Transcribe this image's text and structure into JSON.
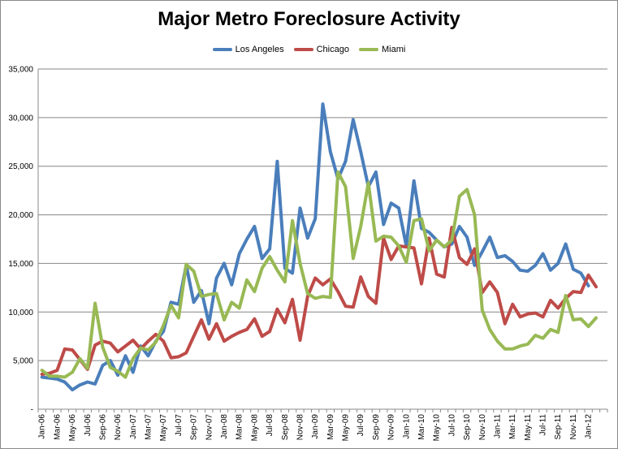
{
  "chart_data": {
    "type": "line",
    "title": "Major Metro Foreclosure Activity",
    "legend_position": "top",
    "grid": true,
    "ylim": [
      0,
      35000
    ],
    "ytick_values": [
      0,
      5000,
      10000,
      15000,
      20000,
      25000,
      30000,
      35000
    ],
    "ytick_labels": [
      "-",
      "5,000",
      "10,000",
      "15,000",
      "20,000",
      "25,000",
      "30,000",
      "35,000"
    ],
    "x": [
      "Jan-06",
      "Feb-06",
      "Mar-06",
      "Apr-06",
      "May-06",
      "Jun-06",
      "Jul-06",
      "Aug-06",
      "Sep-06",
      "Oct-06",
      "Nov-06",
      "Dec-06",
      "Jan-07",
      "Feb-07",
      "Mar-07",
      "Apr-07",
      "May-07",
      "Jun-07",
      "Jul-07",
      "Aug-07",
      "Sep-07",
      "Oct-07",
      "Nov-07",
      "Dec-07",
      "Jan-08",
      "Feb-08",
      "Mar-08",
      "Apr-08",
      "May-08",
      "Jun-08",
      "Jul-08",
      "Aug-08",
      "Sep-08",
      "Oct-08",
      "Nov-08",
      "Dec-08",
      "Jan-09",
      "Feb-09",
      "Mar-09",
      "Apr-09",
      "May-09",
      "Jun-09",
      "Jul-09",
      "Aug-09",
      "Sep-09",
      "Oct-09",
      "Nov-09",
      "Dec-09",
      "Jan-10",
      "Feb-10",
      "Mar-10",
      "Apr-10",
      "May-10",
      "Jun-10",
      "Jul-10",
      "Aug-10",
      "Sep-10",
      "Oct-10",
      "Nov-10",
      "Dec-10",
      "Jan-11",
      "Feb-11",
      "Mar-11",
      "Apr-11",
      "May-11",
      "Jun-11",
      "Jul-11",
      "Aug-11",
      "Sep-11",
      "Oct-11",
      "Nov-11",
      "Dec-11",
      "Jan-12",
      "Feb-12",
      "Mar-12"
    ],
    "xtick_labels": [
      "Jan-06",
      "Mar-06",
      "May-06",
      "Jul-06",
      "Sep-06",
      "Nov-06",
      "Jan-07",
      "Mar-07",
      "May-07",
      "Jul-07",
      "Sep-07",
      "Nov-07",
      "Jan-08",
      "Mar-08",
      "May-08",
      "Jul-08",
      "Sep-08",
      "Nov-08",
      "Jan-09",
      "Mar-09",
      "May-09",
      "Jul-09",
      "Sep-09",
      "Nov-09",
      "Jan-10",
      "Mar-10",
      "May-10",
      "Jul-10",
      "Sep-10",
      "Nov-10",
      "Jan-11",
      "Mar-11",
      "May-11",
      "Jul-11",
      "Sep-11",
      "Nov-11",
      "Jan-12"
    ],
    "series": [
      {
        "name": "Los Angeles",
        "color": "#4a7ebb",
        "values": [
          3300,
          3200,
          3100,
          2800,
          2000,
          2500,
          2800,
          2600,
          4500,
          5000,
          3500,
          5500,
          3800,
          6500,
          5500,
          7000,
          8000,
          11000,
          10800,
          14800,
          11000,
          12200,
          8800,
          13500,
          15000,
          12800,
          16000,
          17500,
          18800,
          15500,
          16500,
          25500,
          14500,
          14000,
          20700,
          17600,
          19600,
          31400,
          26500,
          23700,
          25500,
          29800,
          26500,
          22900,
          24400,
          19000,
          21200,
          20700,
          16800,
          23500,
          18600,
          18200,
          17400,
          16700,
          17000,
          18800,
          17700,
          14800,
          16200,
          17700,
          15600,
          15800,
          15200,
          14300,
          14200,
          14800,
          16000,
          14300,
          15000,
          17000,
          14400,
          14000,
          12700,
          null,
          null
        ]
      },
      {
        "name": "Chicago",
        "color": "#be4b48",
        "values": [
          3600,
          3700,
          4000,
          6200,
          6100,
          5100,
          4100,
          6600,
          7000,
          6800,
          5900,
          6500,
          7100,
          6200,
          7000,
          7700,
          7000,
          5300,
          5400,
          5800,
          7500,
          9200,
          7200,
          8800,
          7000,
          7500,
          7900,
          8200,
          9300,
          7500,
          8000,
          10300,
          8900,
          11300,
          7100,
          11600,
          13500,
          12800,
          13400,
          12100,
          10600,
          10500,
          13600,
          11600,
          10900,
          17600,
          15400,
          16800,
          16700,
          16600,
          12900,
          17600,
          13900,
          13600,
          18700,
          15600,
          14900,
          16500,
          12000,
          13100,
          12000,
          8800,
          10800,
          9500,
          9800,
          9900,
          9500,
          11200,
          10400,
          11400,
          12100,
          12000,
          13800,
          12600,
          null
        ]
      },
      {
        "name": "Miami",
        "color": "#98b954",
        "values": [
          4000,
          3400,
          3400,
          3300,
          3800,
          5200,
          4200,
          10900,
          6400,
          4300,
          3900,
          3300,
          5200,
          6300,
          6100,
          6900,
          8600,
          10700,
          9400,
          14900,
          14200,
          11600,
          11800,
          11900,
          9200,
          11000,
          10400,
          13300,
          12100,
          14500,
          15700,
          14300,
          13100,
          19400,
          15000,
          11900,
          11400,
          11600,
          11500,
          24400,
          22900,
          15500,
          18800,
          23300,
          17300,
          17800,
          17700,
          16800,
          15100,
          19400,
          19600,
          16300,
          17400,
          16700,
          17400,
          21900,
          22600,
          20000,
          10200,
          8200,
          7000,
          6200,
          6200,
          6500,
          6700,
          7600,
          7300,
          8200,
          7900,
          11700,
          9200,
          9300,
          8500,
          9400,
          null
        ]
      }
    ]
  }
}
